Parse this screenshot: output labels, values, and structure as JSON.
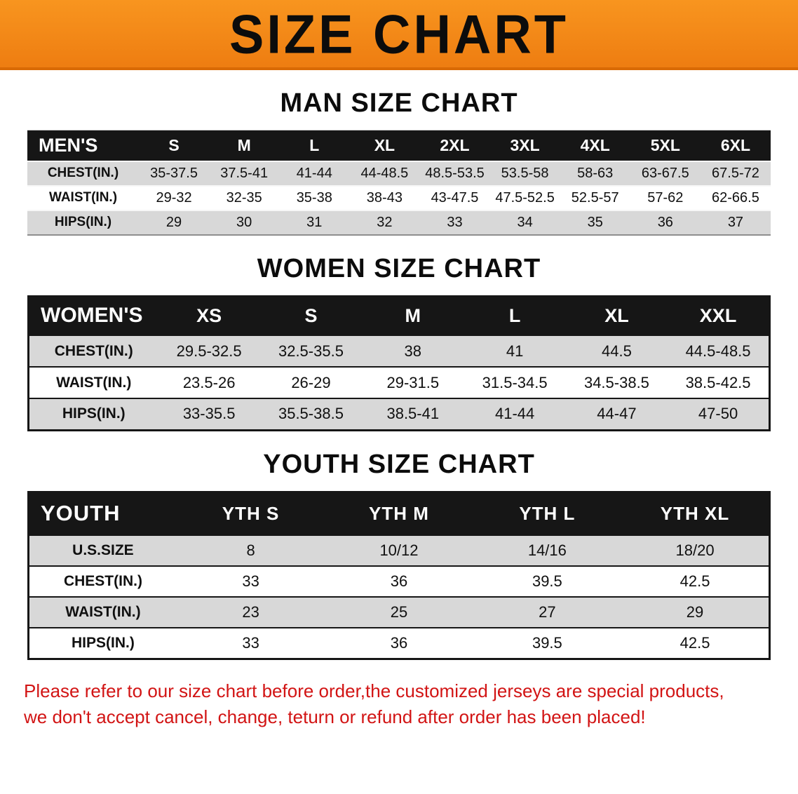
{
  "banner": {
    "title": "SIZE CHART",
    "background": "#f68b1f"
  },
  "sections": {
    "men": {
      "heading": "MAN SIZE CHART",
      "table": {
        "header": [
          "MEN'S",
          "S",
          "M",
          "L",
          "XL",
          "2XL",
          "3XL",
          "4XL",
          "5XL",
          "6XL"
        ],
        "rows": [
          [
            "CHEST(IN.)",
            "35-37.5",
            "37.5-41",
            "41-44",
            "44-48.5",
            "48.5-53.5",
            "53.5-58",
            "58-63",
            "63-67.5",
            "67.5-72"
          ],
          [
            "WAIST(IN.)",
            "29-32",
            "32-35",
            "35-38",
            "38-43",
            "43-47.5",
            "47.5-52.5",
            "52.5-57",
            "57-62",
            "62-66.5"
          ],
          [
            "HIPS(IN.)",
            "29",
            "30",
            "31",
            "32",
            "33",
            "34",
            "35",
            "36",
            "37"
          ]
        ]
      }
    },
    "women": {
      "heading": "WOMEN SIZE CHART",
      "table": {
        "header": [
          "WOMEN'S",
          "XS",
          "S",
          "M",
          "L",
          "XL",
          "XXL"
        ],
        "rows": [
          [
            "CHEST(IN.)",
            "29.5-32.5",
            "32.5-35.5",
            "38",
            "41",
            "44.5",
            "44.5-48.5"
          ],
          [
            "WAIST(IN.)",
            "23.5-26",
            "26-29",
            "29-31.5",
            "31.5-34.5",
            "34.5-38.5",
            "38.5-42.5"
          ],
          [
            "HIPS(IN.)",
            "33-35.5",
            "35.5-38.5",
            "38.5-41",
            "41-44",
            "44-47",
            "47-50"
          ]
        ]
      }
    },
    "youth": {
      "heading": "YOUTH SIZE CHART",
      "table": {
        "header": [
          "YOUTH",
          "YTH S",
          "YTH M",
          "YTH L",
          "YTH XL"
        ],
        "rows": [
          [
            "U.S.SIZE",
            "8",
            "10/12",
            "14/16",
            "18/20"
          ],
          [
            "CHEST(IN.)",
            "33",
            "36",
            "39.5",
            "42.5"
          ],
          [
            "WAIST(IN.)",
            "23",
            "25",
            "27",
            "29"
          ],
          [
            "HIPS(IN.)",
            "33",
            "36",
            "39.5",
            "42.5"
          ]
        ]
      }
    }
  },
  "footer": {
    "line1": "Please refer to our size chart before order,the customized jerseys are special products,",
    "line2": "we don't accept cancel, change, teturn or refund after order has been placed!",
    "color": "#d21414"
  }
}
